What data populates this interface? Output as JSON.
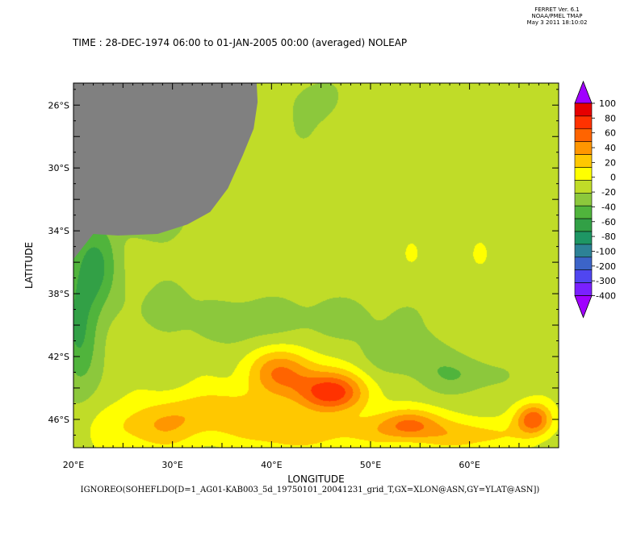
{
  "header": {
    "lines": [
      "FERRET Ver. 6.1",
      "NOAA/PMEL TMAP",
      "May  3 2011 18:10:02"
    ]
  },
  "chart_data": {
    "type": "heatmap",
    "title": "TIME : 28-DEC-1974 06:00 to 01-JAN-2005 00:00 (averaged) NOLEAP",
    "xlabel": "LONGITUDE",
    "ylabel": "LATITUDE",
    "footer": "IGNOREO(SOHEFLDO[D=1_AG01-KAB003_5d_19750101_20041231_grid_T,GX=XLON@ASN,GY=YLAT@ASN])",
    "xlim": [
      20,
      69
    ],
    "ylim": [
      -47.8,
      -24.6
    ],
    "x_ticks": [
      {
        "value": 20,
        "label": "20°E"
      },
      {
        "value": 30,
        "label": "30°E"
      },
      {
        "value": 40,
        "label": "40°E"
      },
      {
        "value": 50,
        "label": "50°E"
      },
      {
        "value": 60,
        "label": "60°E"
      }
    ],
    "y_ticks": [
      {
        "value": -26,
        "label": "26°S"
      },
      {
        "value": -30,
        "label": "30°S"
      },
      {
        "value": -34,
        "label": "34°S"
      },
      {
        "value": -38,
        "label": "38°S"
      },
      {
        "value": -42,
        "label": "42°S"
      },
      {
        "value": -46,
        "label": "46°S"
      }
    ],
    "colorbar": {
      "levels": [
        "-400",
        "-300",
        "-200",
        "-100",
        "-80",
        "-60",
        "-40",
        "-20",
        "0",
        "20",
        "40",
        "60",
        "80",
        "100"
      ],
      "colors": [
        "#a000ff",
        "#7a20ff",
        "#5046f0",
        "#3c64c8",
        "#2d8296",
        "#1e9664",
        "#32a046",
        "#50b43c",
        "#8cc83c",
        "#c0dc28",
        "#ffff00",
        "#ffc800",
        "#ff9600",
        "#ff6400",
        "#ff3200",
        "#e60000",
        "#b40000"
      ]
    },
    "land_color": "#808080",
    "fields": [
      {
        "x": 58,
        "y": -36,
        "sx": 18,
        "sy": 4,
        "v": 0.25
      },
      {
        "x": 35,
        "y": -28,
        "sx": 12,
        "sy": 4,
        "v": -0.25
      },
      {
        "x": 42,
        "y": -27,
        "sx": 4,
        "sy": 3,
        "v": -0.35
      },
      {
        "x": 24,
        "y": -33,
        "sx": 5,
        "sy": 5,
        "v": -0.2
      },
      {
        "x": 22,
        "y": -36.5,
        "sx": 2.5,
        "sy": 3,
        "v": -2.8
      },
      {
        "x": 28,
        "y": -33.2,
        "sx": 3,
        "sy": 1.3,
        "v": -1.8
      },
      {
        "x": 20.5,
        "y": -41,
        "sx": 2,
        "sy": 3.5,
        "v": -2.5
      },
      {
        "x": 29.5,
        "y": -38.8,
        "sx": 2,
        "sy": 1.6,
        "v": -1.5
      },
      {
        "x": 45,
        "y": -39.5,
        "sx": 13,
        "sy": 1.8,
        "v": -1.0
      },
      {
        "x": 53.5,
        "y": -41.8,
        "sx": 4,
        "sy": 1.3,
        "v": -1.4
      },
      {
        "x": 59,
        "y": -43.2,
        "sx": 4.5,
        "sy": 1.2,
        "v": -1.5
      },
      {
        "x": 36,
        "y": -40,
        "sx": 3,
        "sy": 1.5,
        "v": -0.8
      },
      {
        "x": 45,
        "y": -25.6,
        "sx": 2,
        "sy": 1.2,
        "v": -1.0
      },
      {
        "x": 46,
        "y": -44.3,
        "sx": 3.5,
        "sy": 1.3,
        "v": 5.0
      },
      {
        "x": 41,
        "y": -43,
        "sx": 3.5,
        "sy": 1.5,
        "v": 3.3
      },
      {
        "x": 35,
        "y": -45.5,
        "sx": 6,
        "sy": 1.5,
        "v": 2.0
      },
      {
        "x": 28,
        "y": -46.5,
        "sx": 5,
        "sy": 1.5,
        "v": 2.0
      },
      {
        "x": 54,
        "y": -46.3,
        "sx": 3,
        "sy": 1.0,
        "v": 3.2
      },
      {
        "x": 66.5,
        "y": -46,
        "sx": 1.8,
        "sy": 1.0,
        "v": 4.2
      },
      {
        "x": 60,
        "y": -47,
        "sx": 5,
        "sy": 1.0,
        "v": 2.0
      },
      {
        "x": 48,
        "y": -46.8,
        "sx": 6,
        "sy": 1.0,
        "v": 1.6
      },
      {
        "x": 41,
        "y": -47,
        "sx": 4,
        "sy": 1.0,
        "v": 1.6
      }
    ]
  }
}
